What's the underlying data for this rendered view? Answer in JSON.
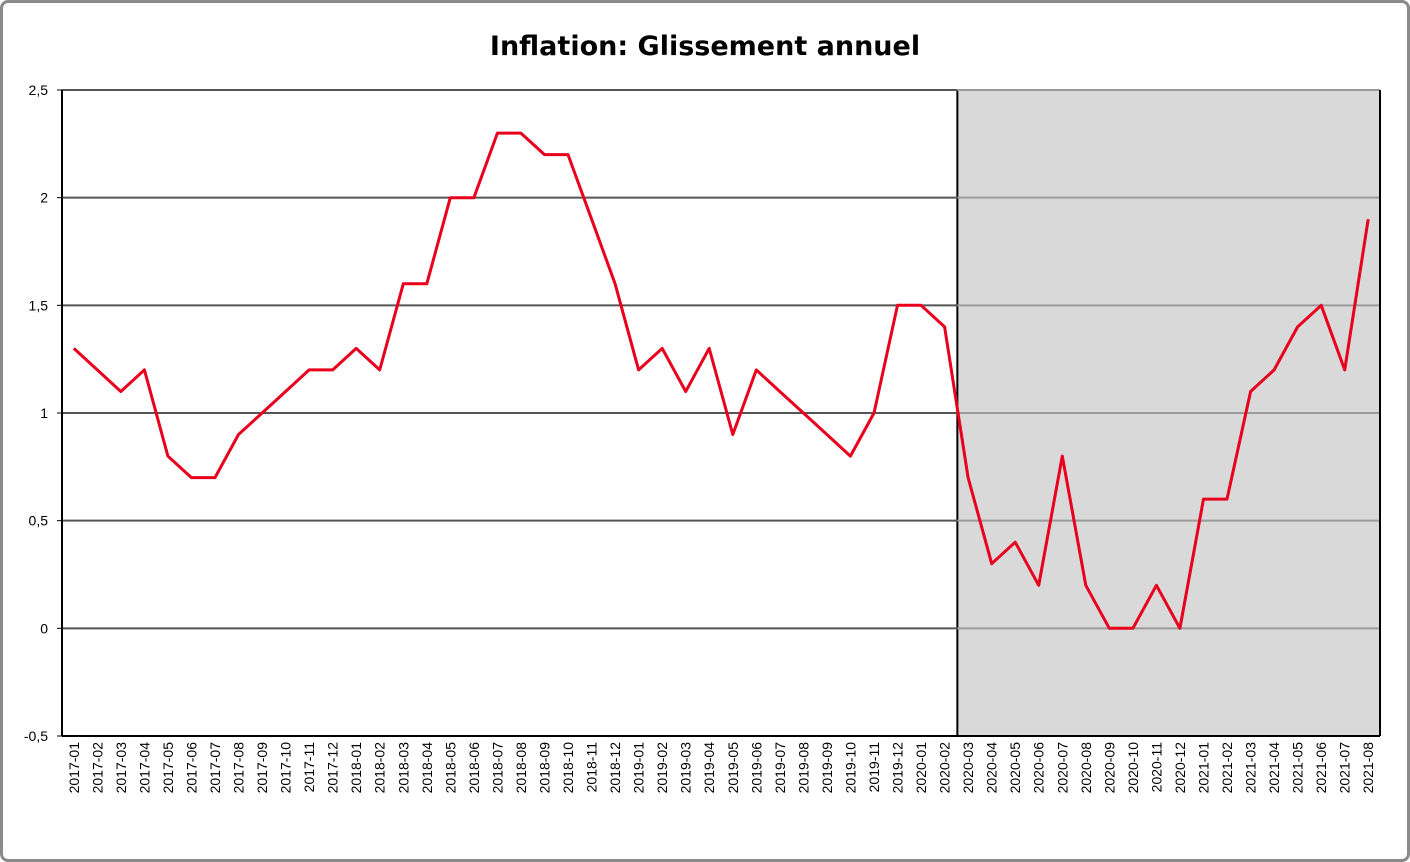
{
  "chart_data": {
    "type": "line",
    "title": "Inflation: Glissement annuel",
    "xlabel": "",
    "ylabel": "",
    "ylim": [
      -0.5,
      2.5
    ],
    "yticks": [
      -0.5,
      0,
      0.5,
      1,
      1.5,
      2,
      2.5
    ],
    "ytick_labels": [
      "-0,5",
      "0",
      "0,5",
      "1",
      "1,5",
      "2",
      "2,5"
    ],
    "grid": true,
    "shaded_region": {
      "from": "2020-03",
      "to": "2021-08",
      "color": "#d9d9d9"
    },
    "series_color": "#e8001c",
    "categories": [
      "2017-01",
      "2017-02",
      "2017-03",
      "2017-04",
      "2017-05",
      "2017-06",
      "2017-07",
      "2017-08",
      "2017-09",
      "2017-10",
      "2017-11",
      "2017-12",
      "2018-01",
      "2018-02",
      "2018-03",
      "2018-04",
      "2018-05",
      "2018-06",
      "2018-07",
      "2018-08",
      "2018-09",
      "2018-10",
      "2018-11",
      "2018-12",
      "2019-01",
      "2019-02",
      "2019-03",
      "2019-04",
      "2019-05",
      "2019-06",
      "2019-07",
      "2019-08",
      "2019-09",
      "2019-10",
      "2019-11",
      "2019-12",
      "2020-01",
      "2020-02",
      "2020-03",
      "2020-04",
      "2020-05",
      "2020-06",
      "2020-07",
      "2020-08",
      "2020-09",
      "2020-10",
      "2020-11",
      "2020-12",
      "2021-01",
      "2021-02",
      "2021-03",
      "2021-04",
      "2021-05",
      "2021-06",
      "2021-07",
      "2021-08"
    ],
    "values": [
      1.3,
      1.2,
      1.1,
      1.2,
      0.8,
      0.7,
      0.7,
      0.9,
      1.0,
      1.1,
      1.2,
      1.2,
      1.3,
      1.2,
      1.6,
      1.6,
      2.0,
      2.0,
      2.3,
      2.3,
      2.2,
      2.2,
      1.9,
      1.6,
      1.2,
      1.3,
      1.1,
      1.3,
      0.9,
      1.2,
      1.1,
      1.0,
      0.9,
      0.8,
      1.0,
      1.5,
      1.5,
      1.4,
      0.7,
      0.3,
      0.4,
      0.2,
      0.8,
      0.2,
      0.0,
      0.0,
      0.2,
      0.0,
      0.6,
      0.6,
      1.1,
      1.2,
      1.4,
      1.5,
      1.2,
      1.9
    ]
  }
}
